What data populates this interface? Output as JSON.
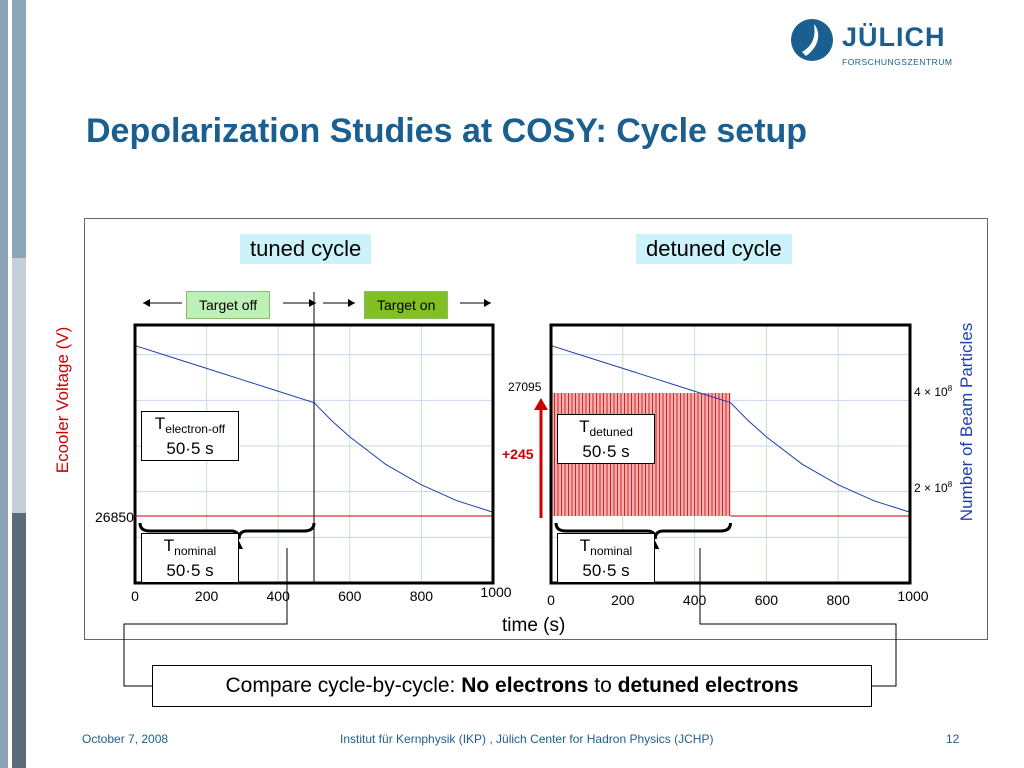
{
  "slide": {
    "title": "Depolarization Studies at COSY: Cycle setup",
    "logo": {
      "name": "JÜLICH",
      "subtitle": "FORSCHUNGSZENTRUM"
    },
    "footer": {
      "date": "October 7, 2008",
      "institute": "Institut für Kernphysik (IKP) , Jülich Center for Hadron Physics (JCHP)",
      "page": "12"
    },
    "compare": {
      "prefix": "Compare cycle-by-cycle: ",
      "bold1": "No electrons",
      "middle": " to ",
      "bold2": "detuned electrons"
    },
    "colors": {
      "title": "#1a5f8f",
      "voltage": "#cc0000",
      "particles": "#1f3fb0",
      "target_off": "#bdf0b4",
      "target_on": "#80c020",
      "cycle_label_bg": "#ccf2fa"
    }
  },
  "chart_data": [
    {
      "type": "line",
      "panel_label": "tuned cycle",
      "annotations": {
        "target_off": "Target off",
        "target_on": "Target on",
        "t_electron_off": {
          "symbol": "T",
          "sub": "electron-off",
          "value": "50·5 s"
        },
        "t_nominal": {
          "symbol": "T",
          "sub": "nominal",
          "value": "50·5 s"
        }
      },
      "xlabel": "time (s)",
      "ylabel": "Ecooler Voltage (V)",
      "xlim": [
        0,
        1000
      ],
      "x_ticks": [
        "0",
        "200",
        "400",
        "600",
        "800",
        "1000"
      ],
      "y_tick_left": "26850",
      "target_switch_time": 500,
      "series": [
        {
          "name": "Ecooler Voltage (V)",
          "x": [
            0,
            500,
            1000
          ],
          "y": [
            26850,
            26850,
            26850
          ]
        },
        {
          "name": "Number of Beam Particles",
          "x": [
            0,
            100,
            200,
            300,
            400,
            500,
            550,
            600,
            700,
            800,
            900,
            1000
          ],
          "y": [
            520000000.0,
            495000000.0,
            470000000.0,
            445000000.0,
            420000000.0,
            395000000.0,
            355000000.0,
            320000000.0,
            260000000.0,
            215000000.0,
            180000000.0,
            155000000.0
          ]
        }
      ],
      "grid": true
    },
    {
      "type": "line",
      "panel_label": "detuned cycle",
      "annotations": {
        "t_detuned": {
          "symbol": "T",
          "sub": "detuned",
          "value": "50·5 s"
        },
        "t_nominal": {
          "symbol": "T",
          "sub": "nominal",
          "value": "50·5 s"
        },
        "delta": "+245"
      },
      "xlabel": "time (s)",
      "ylabel": "Number of Beam Particles",
      "xlim": [
        0,
        1000
      ],
      "x_ticks": [
        "0",
        "200",
        "400",
        "600",
        "800",
        "1000"
      ],
      "y_tick_left": "27095",
      "y_ticks_right": [
        {
          "mantissa": "4",
          "exp": "8"
        },
        {
          "mantissa": "2",
          "exp": "8"
        }
      ],
      "switching": {
        "x_start": 0,
        "x_end": 500,
        "y_low": 26850,
        "y_high": 27095
      },
      "series": [
        {
          "name": "Ecooler Voltage (V)",
          "x": [
            500,
            1000
          ],
          "y": [
            26850,
            26850
          ]
        },
        {
          "name": "Number of Beam Particles",
          "x": [
            0,
            100,
            200,
            300,
            400,
            500,
            550,
            600,
            700,
            800,
            900,
            1000
          ],
          "y": [
            520000000.0,
            495000000.0,
            470000000.0,
            445000000.0,
            420000000.0,
            395000000.0,
            355000000.0,
            320000000.0,
            260000000.0,
            215000000.0,
            180000000.0,
            155000000.0
          ]
        }
      ],
      "grid": true
    }
  ]
}
